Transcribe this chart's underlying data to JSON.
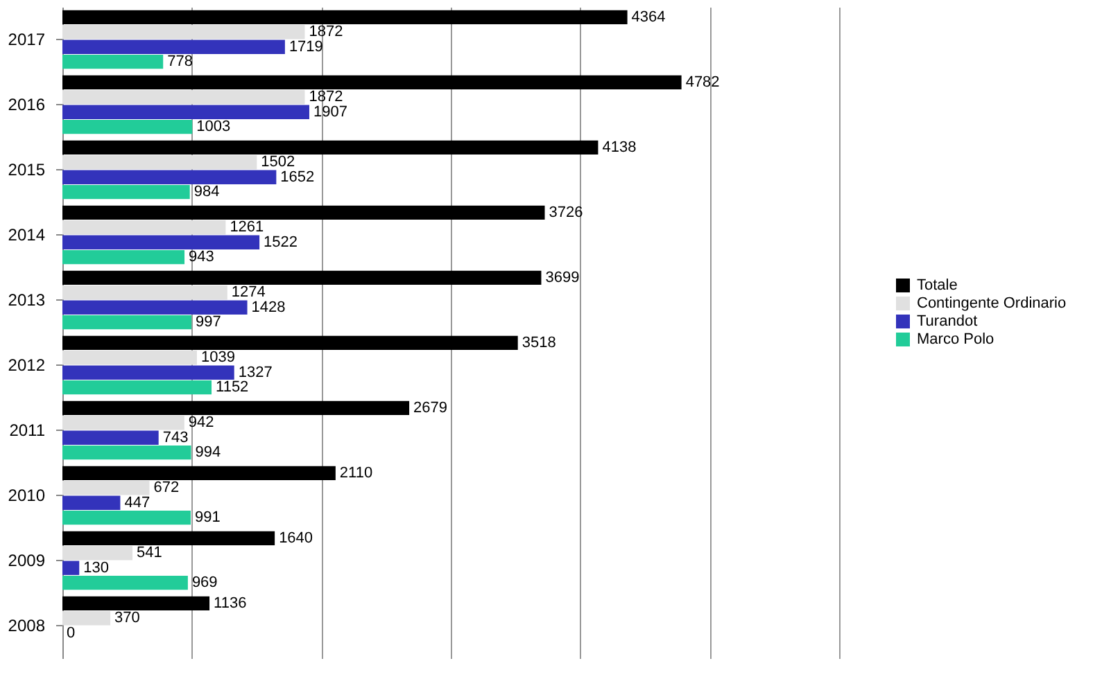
{
  "chart_data": {
    "type": "bar",
    "orientation": "horizontal",
    "categories": [
      "2017",
      "2016",
      "2015",
      "2014",
      "2013",
      "2012",
      "2011",
      "2010",
      "2009",
      "2008"
    ],
    "series": [
      {
        "name": "Totale",
        "color": "#000000",
        "values": [
          4364,
          4782,
          4138,
          3726,
          3699,
          3518,
          2679,
          2110,
          1640,
          1136
        ]
      },
      {
        "name": "Contingente Ordinario",
        "color": "#e0e0e0",
        "values": [
          1872,
          1872,
          1502,
          1261,
          1274,
          1039,
          942,
          672,
          541,
          370
        ]
      },
      {
        "name": "Turandot",
        "color": "#3333bb",
        "values": [
          1719,
          1907,
          1652,
          1522,
          1428,
          1327,
          743,
          447,
          130,
          0
        ]
      },
      {
        "name": "Marco Polo",
        "color": "#22cc99",
        "values": [
          778,
          1003,
          984,
          943,
          997,
          1152,
          994,
          991,
          969,
          null
        ]
      }
    ],
    "xlim": [
      0,
      6000
    ],
    "xticks": [
      0,
      1000,
      2000,
      3000,
      4000,
      5000,
      6000
    ],
    "grid": "x",
    "tick_labels": "y",
    "data_labels": true,
    "legend": "right"
  }
}
